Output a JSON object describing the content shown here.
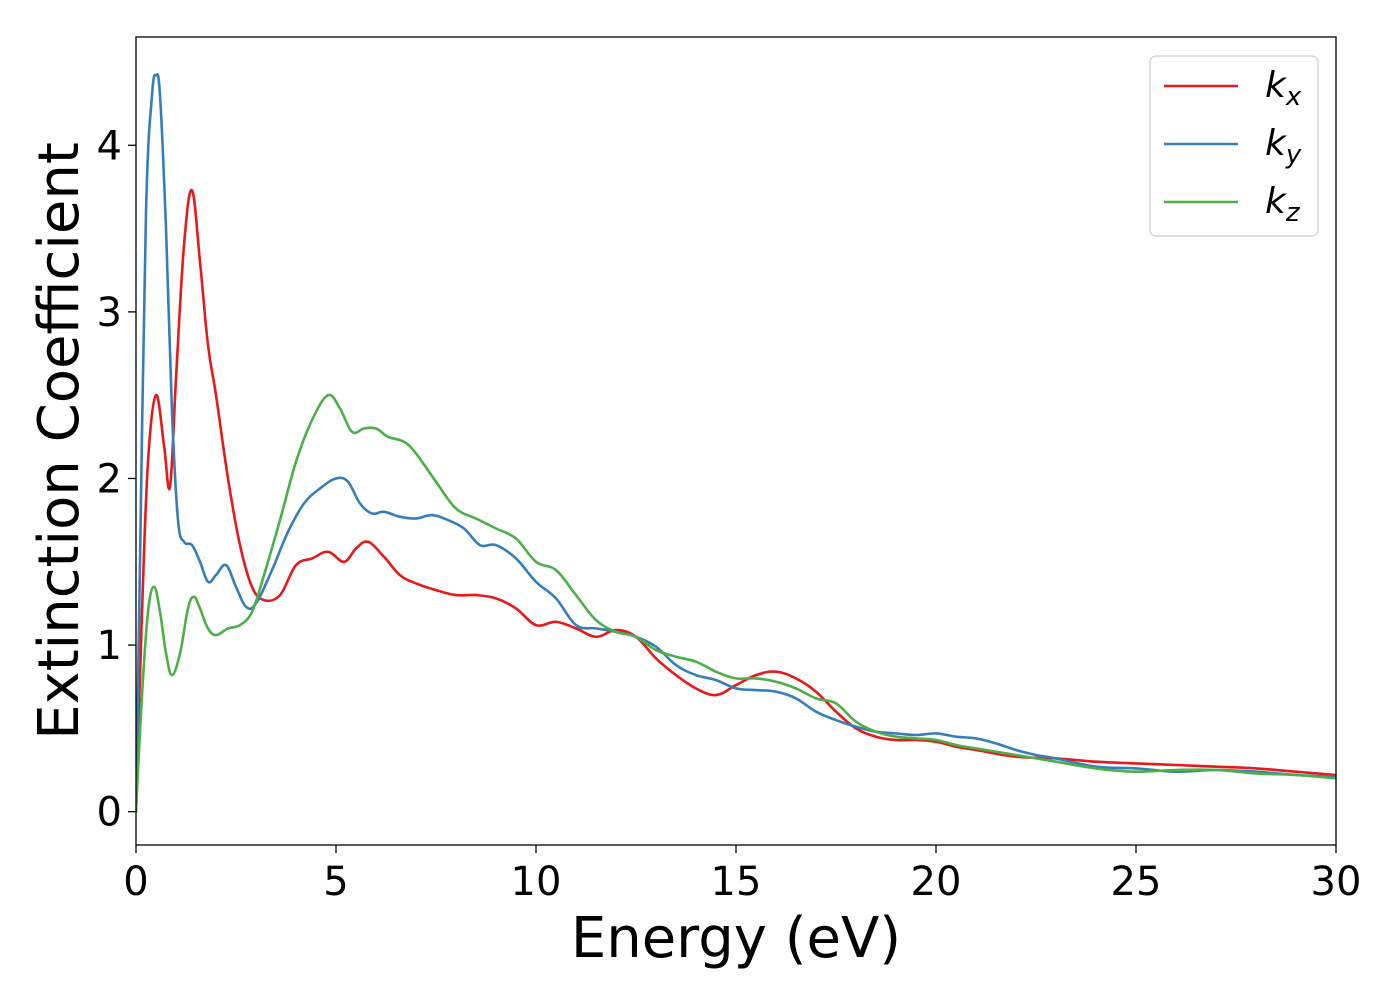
{
  "chart_data": {
    "type": "line",
    "xlabel": "Energy (eV)",
    "ylabel": "Extinction Coefficient",
    "xlim": [
      0,
      30
    ],
    "ylim": [
      -0.2,
      4.65
    ],
    "xticks": [
      "0",
      "5",
      "10",
      "15",
      "20",
      "25",
      "30"
    ],
    "yticks": [
      "0",
      "1",
      "2",
      "3",
      "4"
    ],
    "grid": false,
    "legend_position": "top-right",
    "series": [
      {
        "name": "k",
        "subscript": "x",
        "color": "#e41a1c",
        "x": [
          0,
          0.15,
          0.3,
          0.5,
          0.7,
          0.85,
          1.0,
          1.2,
          1.4,
          1.6,
          1.8,
          2.0,
          2.3,
          2.6,
          2.9,
          3.2,
          3.6,
          4.0,
          4.4,
          4.8,
          5.2,
          5.5,
          5.8,
          6.2,
          6.6,
          7.0,
          7.5,
          8.0,
          8.5,
          9.0,
          9.5,
          10.0,
          10.5,
          11.0,
          11.5,
          12.0,
          12.5,
          13.0,
          13.5,
          14.0,
          14.5,
          15.0,
          15.5,
          16.0,
          16.5,
          17.0,
          17.5,
          18.0,
          18.5,
          19.0,
          19.5,
          20.0,
          20.5,
          21.0,
          22.0,
          23.0,
          24.0,
          25.0,
          26.0,
          27.0,
          28.0,
          29.0,
          30.0
        ],
        "values": [
          0.0,
          1.2,
          2.1,
          2.5,
          2.2,
          1.95,
          2.6,
          3.4,
          3.73,
          3.3,
          2.8,
          2.5,
          2.0,
          1.6,
          1.35,
          1.27,
          1.3,
          1.48,
          1.52,
          1.56,
          1.5,
          1.58,
          1.62,
          1.53,
          1.42,
          1.37,
          1.33,
          1.3,
          1.3,
          1.28,
          1.22,
          1.12,
          1.14,
          1.1,
          1.05,
          1.09,
          1.05,
          0.92,
          0.82,
          0.74,
          0.7,
          0.76,
          0.82,
          0.84,
          0.8,
          0.72,
          0.6,
          0.5,
          0.45,
          0.43,
          0.43,
          0.42,
          0.39,
          0.37,
          0.33,
          0.32,
          0.3,
          0.29,
          0.28,
          0.27,
          0.26,
          0.24,
          0.22
        ]
      },
      {
        "name": "k",
        "subscript": "y",
        "color": "#377eb8",
        "x": [
          0,
          0.1,
          0.25,
          0.4,
          0.5,
          0.6,
          0.75,
          0.9,
          1.05,
          1.2,
          1.4,
          1.6,
          1.8,
          2.0,
          2.25,
          2.5,
          2.75,
          3.0,
          3.4,
          3.8,
          4.2,
          4.6,
          5.0,
          5.3,
          5.6,
          5.9,
          6.2,
          6.6,
          7.0,
          7.4,
          7.8,
          8.2,
          8.6,
          9.0,
          9.5,
          10.0,
          10.5,
          11.0,
          11.5,
          12.0,
          12.5,
          13.0,
          13.5,
          14.0,
          14.5,
          15.0,
          15.5,
          16.0,
          16.5,
          17.0,
          17.5,
          18.0,
          18.5,
          19.0,
          19.5,
          20.0,
          20.5,
          21.0,
          21.5,
          22.0,
          22.5,
          23.0,
          24.0,
          25.0,
          26.0,
          27.0,
          28.0,
          29.0,
          30.0
        ],
        "values": [
          0.0,
          1.5,
          3.6,
          4.3,
          4.42,
          4.3,
          3.5,
          2.4,
          1.75,
          1.62,
          1.6,
          1.5,
          1.38,
          1.42,
          1.48,
          1.35,
          1.23,
          1.25,
          1.45,
          1.68,
          1.85,
          1.94,
          2.0,
          1.98,
          1.85,
          1.79,
          1.8,
          1.77,
          1.76,
          1.78,
          1.75,
          1.7,
          1.6,
          1.6,
          1.52,
          1.38,
          1.28,
          1.12,
          1.1,
          1.08,
          1.05,
          0.99,
          0.88,
          0.82,
          0.79,
          0.74,
          0.73,
          0.72,
          0.68,
          0.6,
          0.55,
          0.51,
          0.48,
          0.47,
          0.46,
          0.47,
          0.45,
          0.44,
          0.41,
          0.37,
          0.34,
          0.32,
          0.27,
          0.26,
          0.24,
          0.25,
          0.24,
          0.22,
          0.21
        ]
      },
      {
        "name": "k",
        "subscript": "z",
        "color": "#4daf4a",
        "x": [
          0,
          0.15,
          0.3,
          0.45,
          0.6,
          0.75,
          0.9,
          1.1,
          1.3,
          1.45,
          1.6,
          1.8,
          2.0,
          2.3,
          2.6,
          2.9,
          3.2,
          3.6,
          4.0,
          4.4,
          4.8,
          5.1,
          5.4,
          5.7,
          6.0,
          6.3,
          6.7,
          7.0,
          7.5,
          8.0,
          8.5,
          9.0,
          9.5,
          10.0,
          10.5,
          11.0,
          11.5,
          12.0,
          12.5,
          13.0,
          13.5,
          14.0,
          14.5,
          15.0,
          15.5,
          16.0,
          16.5,
          17.0,
          17.5,
          18.0,
          18.5,
          19.0,
          19.5,
          20.0,
          20.5,
          21.0,
          22.0,
          23.0,
          24.0,
          25.0,
          26.0,
          27.0,
          28.0,
          29.0,
          30.0
        ],
        "values": [
          0.0,
          0.7,
          1.2,
          1.35,
          1.2,
          0.95,
          0.82,
          0.95,
          1.22,
          1.29,
          1.22,
          1.1,
          1.06,
          1.1,
          1.12,
          1.2,
          1.42,
          1.75,
          2.1,
          2.35,
          2.5,
          2.42,
          2.28,
          2.3,
          2.3,
          2.25,
          2.22,
          2.15,
          1.98,
          1.82,
          1.76,
          1.7,
          1.64,
          1.5,
          1.45,
          1.3,
          1.15,
          1.08,
          1.05,
          0.97,
          0.93,
          0.9,
          0.84,
          0.8,
          0.8,
          0.78,
          0.74,
          0.68,
          0.65,
          0.54,
          0.48,
          0.45,
          0.44,
          0.43,
          0.4,
          0.38,
          0.34,
          0.3,
          0.26,
          0.24,
          0.25,
          0.25,
          0.23,
          0.22,
          0.2
        ]
      }
    ]
  }
}
